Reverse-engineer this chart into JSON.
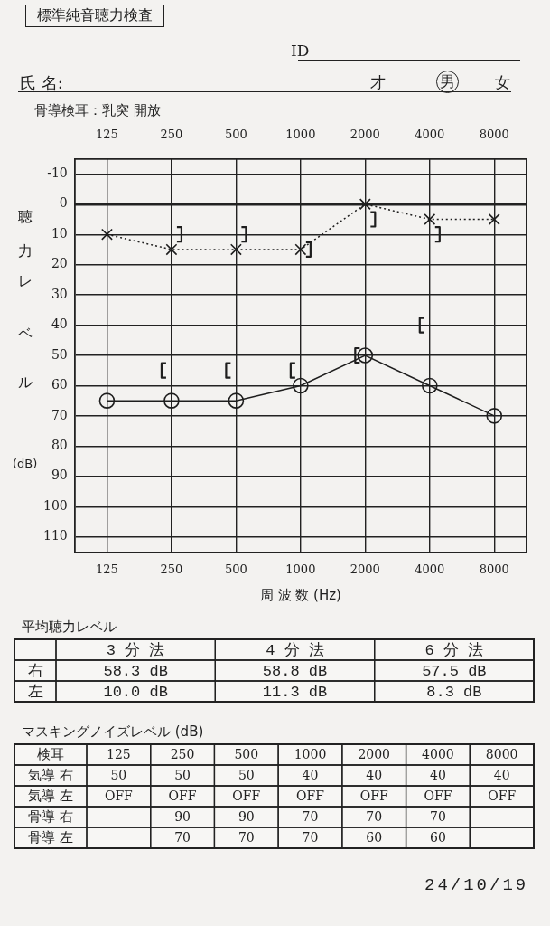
{
  "chart_data": [
    {
      "type": "line",
      "title": "標準純音聴力検査",
      "categories": [
        "125",
        "250",
        "500",
        "1000",
        "2000",
        "4000",
        "8000"
      ],
      "series": [
        {
          "color": "#1e1e1e",
          "values": [
            65,
            65,
            65,
            60,
            50,
            60,
            70
          ],
          "marker": "circle",
          "line_style": "solid"
        },
        {
          "color": "#1e1e1e",
          "values": [
            10,
            15,
            15,
            15,
            0,
            5,
            5
          ],
          "marker": "cross",
          "line_style": "dotted"
        },
        {
          "type": "scatter",
          "color": "#1e1e1e",
          "values": [
            null,
            55,
            55,
            55,
            50,
            40,
            null
          ]
        },
        {
          "type": "scatter",
          "color": "#1e1e1e",
          "values": [
            null,
            10,
            10,
            15,
            5,
            10,
            null
          ]
        }
      ],
      "ylim": [
        115,
        -15
      ],
      "yticks": [
        -10,
        0,
        10,
        20,
        30,
        40,
        50,
        60,
        70,
        80,
        90,
        100,
        110
      ],
      "xlabel": "周 波 数 (Hz)",
      "ylabel": "聴力レベル (dB)",
      "grid": true,
      "ref_lines": [
        {
          "axis": "y",
          "value": 0
        }
      ],
      "annotations": [
        "ID",
        "氏 名:",
        "才",
        "男",
        "女",
        "骨導検耳：乳突 開放",
        "24/10/19"
      ]
    },
    {
      "type": "heatmap",
      "title": "平均聴力レベル",
      "categories": [
        "3 分 法",
        "4 分 法",
        "6 分 法"
      ],
      "y_categories": [
        "右",
        "左"
      ],
      "cells": [
        [
          58.3,
          58.8,
          57.5
        ],
        [
          10.0,
          11.3,
          8.3
        ]
      ],
      "cell_labels": [
        [
          "58.3 dB",
          "58.8 dB",
          "57.5 dB"
        ],
        [
          "10.0 dB",
          "11.3 dB",
          "8.3 dB"
        ]
      ]
    },
    {
      "type": "heatmap",
      "title": "マスキングノイズレベル (dB)",
      "ylabel": "検耳",
      "categories": [
        "125",
        "250",
        "500",
        "1000",
        "2000",
        "4000",
        "8000"
      ],
      "y_categories": [
        "気導 右",
        "気導 左",
        "骨導 右",
        "骨導 左"
      ],
      "cells": [
        [
          50,
          50,
          50,
          40,
          40,
          40,
          40
        ],
        [
          null,
          null,
          null,
          null,
          null,
          null,
          null
        ],
        [
          null,
          90,
          90,
          70,
          70,
          70,
          null
        ],
        [
          null,
          70,
          70,
          70,
          60,
          60,
          null
        ]
      ],
      "cell_labels": [
        [
          "50",
          "50",
          "50",
          "40",
          "40",
          "40",
          "40"
        ],
        [
          "OFF",
          "OFF",
          "OFF",
          "OFF",
          "OFF",
          "OFF",
          "OFF"
        ],
        [
          null,
          "90",
          "90",
          "70",
          "70",
          "70",
          null
        ],
        [
          null,
          "70",
          "70",
          "70",
          "60",
          "60",
          null
        ]
      ]
    }
  ]
}
